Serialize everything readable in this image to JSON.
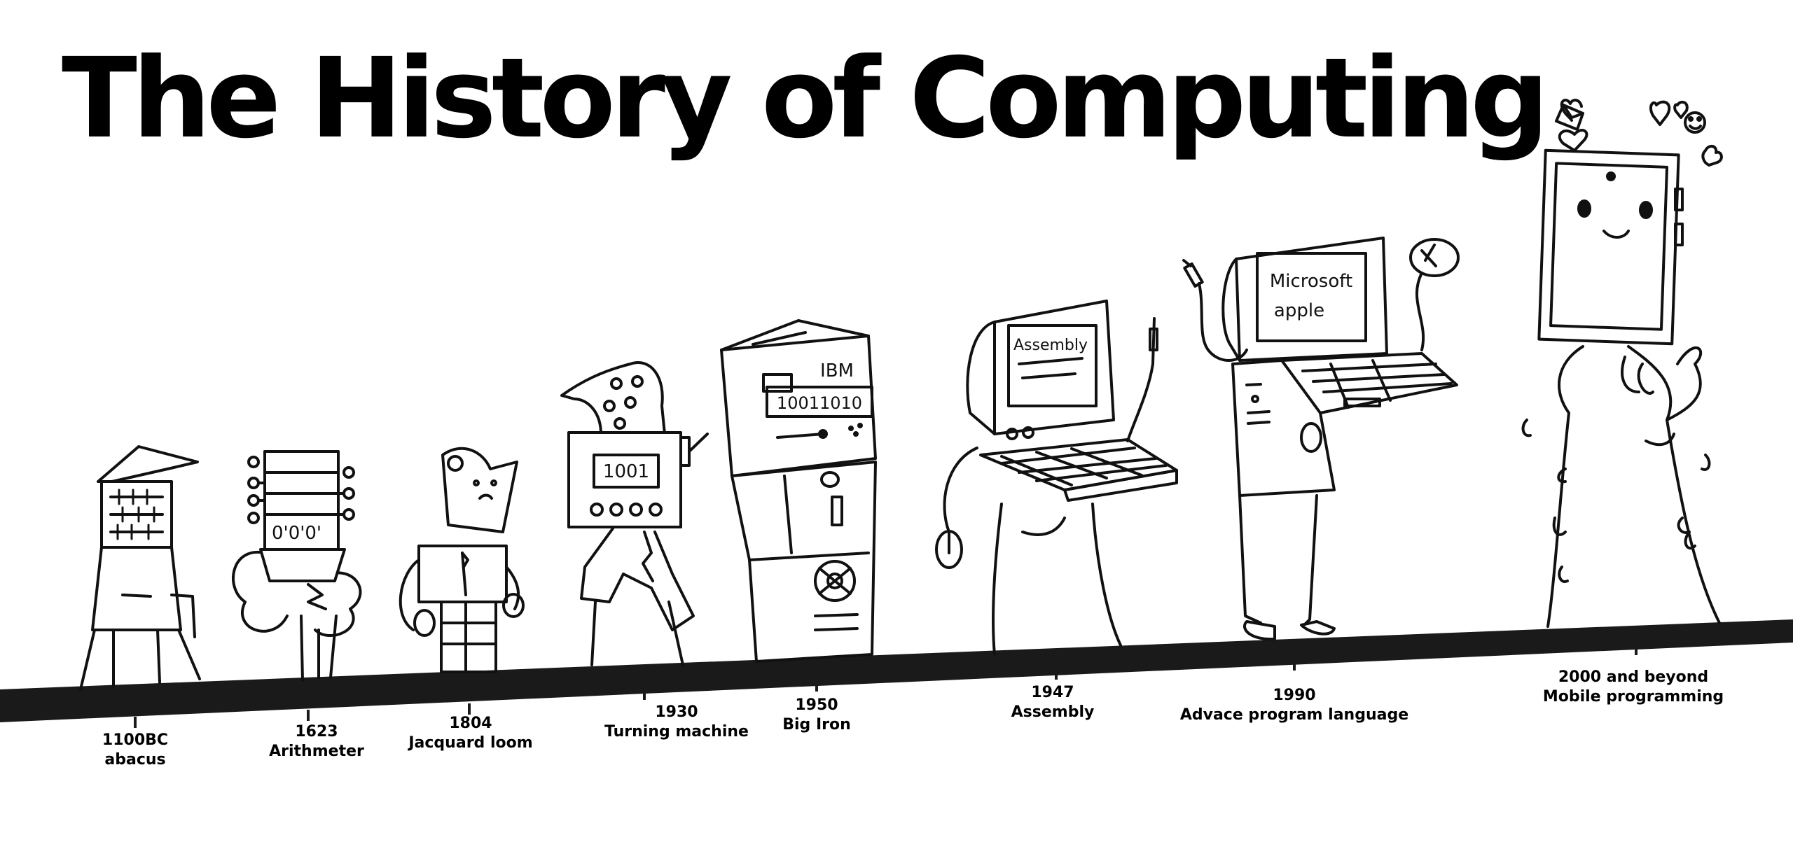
{
  "title": "The History of Computing",
  "timeline": [
    {
      "year": "1100BC",
      "label": "abacus"
    },
    {
      "year": "1623",
      "label": "Arithmeter"
    },
    {
      "year": "1804",
      "label": "Jacquard loom"
    },
    {
      "year": "1930",
      "label": "Turning machine"
    },
    {
      "year": "1950",
      "label": "Big Iron"
    },
    {
      "year": "1947",
      "label": "Assembly"
    },
    {
      "year": "1990",
      "label": "Advace program language"
    },
    {
      "year": "2000 and beyond",
      "label": "Mobile programming"
    }
  ],
  "screen_text": {
    "turing": "1001",
    "ibm_brand": "IBM",
    "ibm_binary": "10011010",
    "assembly": "Assembly",
    "microsoft": "Microsoft",
    "apple": "apple"
  }
}
